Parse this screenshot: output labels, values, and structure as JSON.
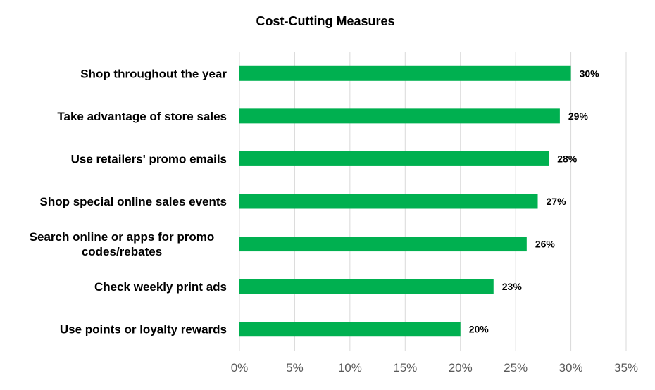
{
  "chart_data": {
    "type": "bar",
    "orientation": "horizontal",
    "title": "Cost-Cutting Measures",
    "categories": [
      [
        "Shop throughout the year"
      ],
      [
        "Take advantage of store sales"
      ],
      [
        "Use retailers' promo emails"
      ],
      [
        "Shop special online sales events"
      ],
      [
        "Search online or apps for promo",
        "codes/rebates"
      ],
      [
        "Check weekly print ads"
      ],
      [
        "Use points or loyalty rewards"
      ]
    ],
    "values": [
      30,
      29,
      28,
      27,
      26,
      23,
      20
    ],
    "data_labels": [
      "30%",
      "29%",
      "28%",
      "27%",
      "26%",
      "23%",
      "20%"
    ],
    "xlim": [
      0,
      35
    ],
    "xticks": [
      0,
      5,
      10,
      15,
      20,
      25,
      30,
      35
    ],
    "xtick_labels": [
      "0%",
      "5%",
      "10%",
      "15%",
      "20%",
      "25%",
      "30%",
      "35%"
    ],
    "xlabel": "",
    "ylabel": "",
    "grid": "vertical",
    "legend": "none",
    "bar_color": "#00b050"
  }
}
